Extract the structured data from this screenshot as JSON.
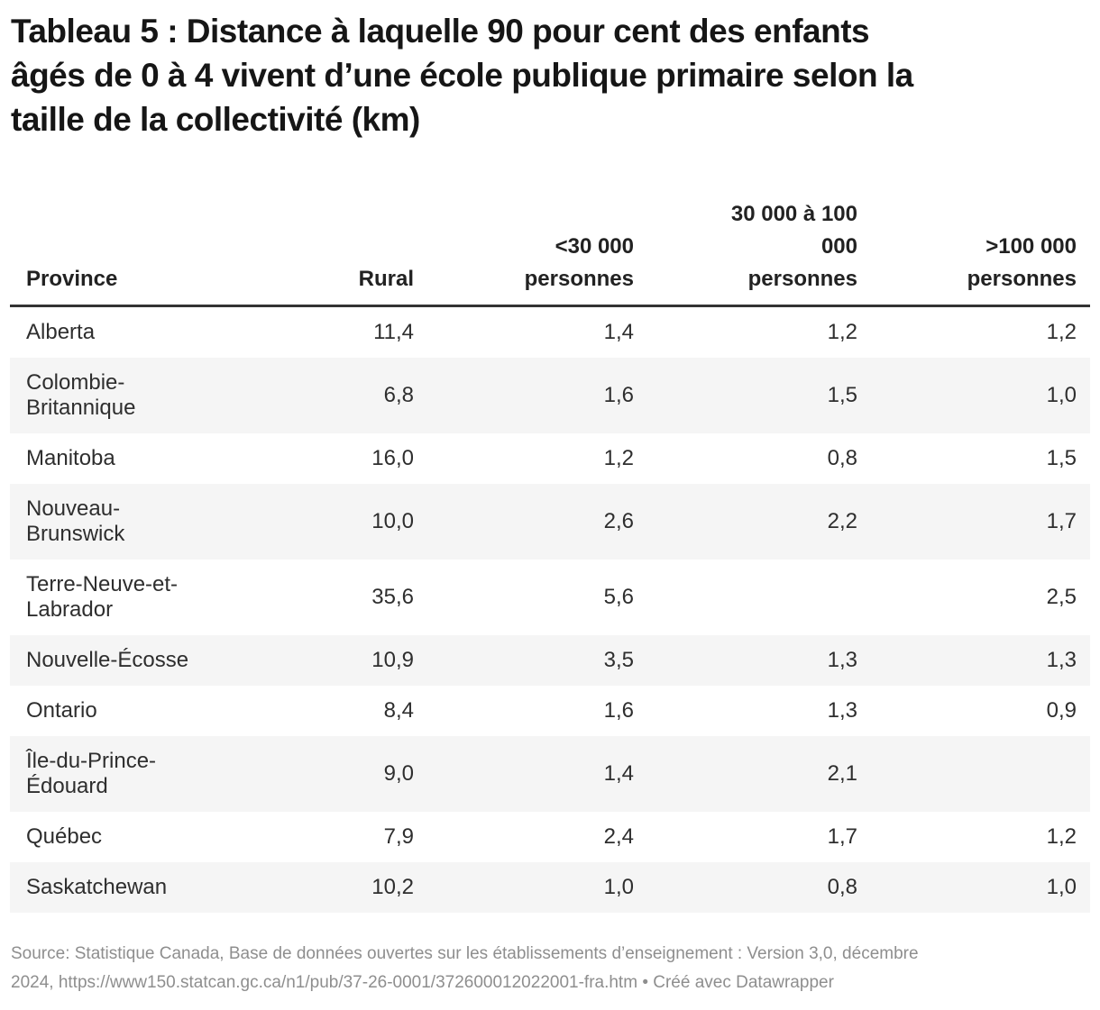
{
  "title": "Tableau 5 : Distance à laquelle 90 pour cent des enfants\nâgés de 0 à 4 vivent d’une école publique primaire selon la\ntaille de la collectivité (km)",
  "table": {
    "columns": [
      {
        "label": "Province"
      },
      {
        "label": "Rural"
      },
      {
        "label": "<30 000\npersonnes"
      },
      {
        "label": "30 000 à 100\n000\npersonnes"
      },
      {
        "label": ">100 000\npersonnes"
      }
    ],
    "rows": [
      {
        "province": "Alberta",
        "values": [
          "11,4",
          "1,4",
          "1,2",
          "1,2"
        ]
      },
      {
        "province": "Colombie-\nBritannique",
        "values": [
          "6,8",
          "1,6",
          "1,5",
          "1,0"
        ]
      },
      {
        "province": "Manitoba",
        "values": [
          "16,0",
          "1,2",
          "0,8",
          "1,5"
        ]
      },
      {
        "province": "Nouveau-\nBrunswick",
        "values": [
          "10,0",
          "2,6",
          "2,2",
          "1,7"
        ]
      },
      {
        "province": "Terre-Neuve-et-\nLabrador",
        "values": [
          "35,6",
          "5,6",
          "",
          "2,5"
        ]
      },
      {
        "province": "Nouvelle-Écosse",
        "values": [
          "10,9",
          "3,5",
          "1,3",
          "1,3"
        ]
      },
      {
        "province": "Ontario",
        "values": [
          "8,4",
          "1,6",
          "1,3",
          "0,9"
        ]
      },
      {
        "province": "Île-du-Prince-\nÉdouard",
        "values": [
          "9,0",
          "1,4",
          "2,1",
          ""
        ]
      },
      {
        "province": "Québec",
        "values": [
          "7,9",
          "2,4",
          "1,7",
          "1,2"
        ]
      },
      {
        "province": "Saskatchewan",
        "values": [
          "10,2",
          "1,0",
          "0,8",
          "1,0"
        ]
      }
    ]
  },
  "footer": "Source: Statistique Canada, Base de données ouvertes sur les établissements d’enseignement : Version 3,0, décembre\n2024, https://www150.statcan.gc.ca/n1/pub/37-26-0001/372600012022001-fra.htm • Créé avec Datawrapper",
  "colors": {
    "title_text": "#161616",
    "body_text": "#2e2e2e",
    "header_rule": "#333333",
    "row_stripe": "#f5f5f5",
    "footer_text": "#8e8e8e",
    "background": "#ffffff"
  },
  "chart_data": {
    "type": "table",
    "title": "Tableau 5 : Distance à laquelle 90 pour cent des enfants âgés de 0 à 4 vivent d’une école publique primaire selon la taille de la collectivité (km)",
    "units": "km",
    "columns": [
      "Province",
      "Rural",
      "<30 000 personnes",
      "30 000 à 100 000 personnes",
      ">100 000 personnes"
    ],
    "rows": [
      [
        "Alberta",
        11.4,
        1.4,
        1.2,
        1.2
      ],
      [
        "Colombie-Britannique",
        6.8,
        1.6,
        1.5,
        1.0
      ],
      [
        "Manitoba",
        16.0,
        1.2,
        0.8,
        1.5
      ],
      [
        "Nouveau-Brunswick",
        10.0,
        2.6,
        2.2,
        1.7
      ],
      [
        "Terre-Neuve-et-Labrador",
        35.6,
        5.6,
        null,
        2.5
      ],
      [
        "Nouvelle-Écosse",
        10.9,
        3.5,
        1.3,
        1.3
      ],
      [
        "Ontario",
        8.4,
        1.6,
        1.3,
        0.9
      ],
      [
        "Île-du-Prince-Édouard",
        9.0,
        1.4,
        2.1,
        null
      ],
      [
        "Québec",
        7.9,
        2.4,
        1.7,
        1.2
      ],
      [
        "Saskatchewan",
        10.2,
        1.0,
        0.8,
        1.0
      ]
    ]
  }
}
